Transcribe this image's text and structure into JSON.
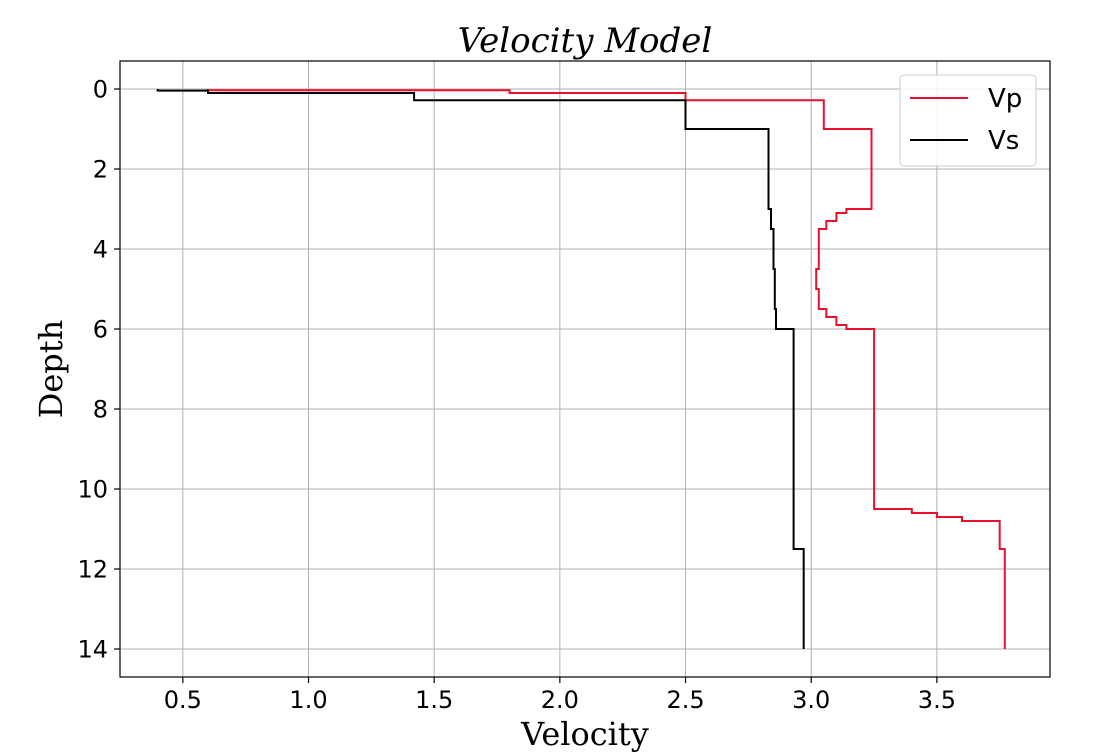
{
  "chart_data": {
    "type": "line",
    "title": "Velocity Model",
    "xlabel": "Velocity",
    "ylabel": "Depth",
    "xlim": [
      0.25,
      3.95
    ],
    "ylim": [
      14.7,
      -0.7
    ],
    "y_inverted": true,
    "grid": true,
    "legend_position": "top-right",
    "xticks": [
      0.5,
      1.0,
      1.5,
      2.0,
      2.5,
      3.0,
      3.5
    ],
    "xtick_labels": [
      "0.5",
      "1.0",
      "1.5",
      "2.0",
      "2.5",
      "3.0",
      "3.5"
    ],
    "yticks": [
      0,
      2,
      4,
      6,
      8,
      10,
      12,
      14
    ],
    "ytick_labels": [
      "0",
      "2",
      "4",
      "6",
      "8",
      "10",
      "12",
      "14"
    ],
    "series": [
      {
        "name": "Vp",
        "color": "#e8112d",
        "points": [
          [
            0.6,
            0.0
          ],
          [
            0.6,
            0.03
          ],
          [
            1.8,
            0.03
          ],
          [
            1.8,
            0.1
          ],
          [
            2.5,
            0.1
          ],
          [
            2.5,
            0.28
          ],
          [
            3.05,
            0.28
          ],
          [
            3.05,
            1.0
          ],
          [
            3.24,
            1.0
          ],
          [
            3.24,
            3.0
          ],
          [
            3.14,
            3.0
          ],
          [
            3.14,
            3.1
          ],
          [
            3.1,
            3.1
          ],
          [
            3.1,
            3.3
          ],
          [
            3.06,
            3.3
          ],
          [
            3.06,
            3.5
          ],
          [
            3.03,
            3.5
          ],
          [
            3.03,
            4.5
          ],
          [
            3.02,
            4.5
          ],
          [
            3.02,
            5.0
          ],
          [
            3.03,
            5.0
          ],
          [
            3.03,
            5.5
          ],
          [
            3.06,
            5.5
          ],
          [
            3.06,
            5.7
          ],
          [
            3.1,
            5.7
          ],
          [
            3.1,
            5.9
          ],
          [
            3.14,
            5.9
          ],
          [
            3.14,
            6.0
          ],
          [
            3.25,
            6.0
          ],
          [
            3.25,
            10.5
          ],
          [
            3.4,
            10.5
          ],
          [
            3.4,
            10.6
          ],
          [
            3.5,
            10.6
          ],
          [
            3.5,
            10.7
          ],
          [
            3.6,
            10.7
          ],
          [
            3.6,
            10.8
          ],
          [
            3.75,
            10.8
          ],
          [
            3.75,
            11.5
          ],
          [
            3.77,
            11.5
          ],
          [
            3.77,
            14.0
          ]
        ]
      },
      {
        "name": "Vs",
        "color": "#000000",
        "points": [
          [
            0.4,
            0.0
          ],
          [
            0.4,
            0.04
          ],
          [
            0.6,
            0.04
          ],
          [
            0.6,
            0.1
          ],
          [
            1.42,
            0.1
          ],
          [
            1.42,
            0.28
          ],
          [
            2.5,
            0.28
          ],
          [
            2.5,
            1.0
          ],
          [
            2.83,
            1.0
          ],
          [
            2.83,
            3.0
          ],
          [
            2.84,
            3.0
          ],
          [
            2.84,
            3.5
          ],
          [
            2.85,
            3.5
          ],
          [
            2.85,
            4.5
          ],
          [
            2.855,
            4.5
          ],
          [
            2.855,
            5.5
          ],
          [
            2.86,
            5.5
          ],
          [
            2.86,
            6.0
          ],
          [
            2.93,
            6.0
          ],
          [
            2.93,
            11.5
          ],
          [
            2.97,
            11.5
          ],
          [
            2.97,
            14.0
          ]
        ]
      }
    ]
  }
}
